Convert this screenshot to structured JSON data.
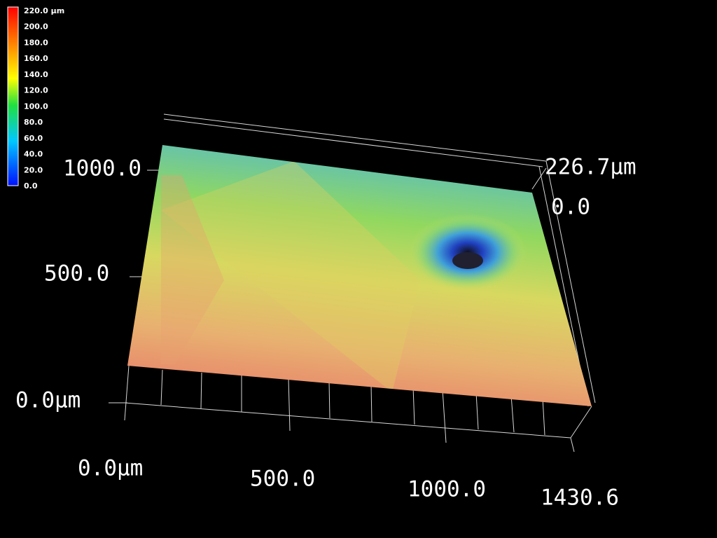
{
  "colorbar": {
    "labels": [
      "220.0 µm",
      "200.0",
      "180.0",
      "160.0",
      "140.0",
      "120.0",
      "100.0",
      "80.0",
      "60.0",
      "40.0",
      "20.0",
      "0.0"
    ]
  },
  "axes": {
    "x": [
      "0.0µm",
      "500.0",
      "1000.0",
      "1430.6"
    ],
    "y": [
      "0.0µm",
      "500.0",
      "1000.0"
    ],
    "z": [
      "226.7µm",
      "0.0"
    ]
  }
}
